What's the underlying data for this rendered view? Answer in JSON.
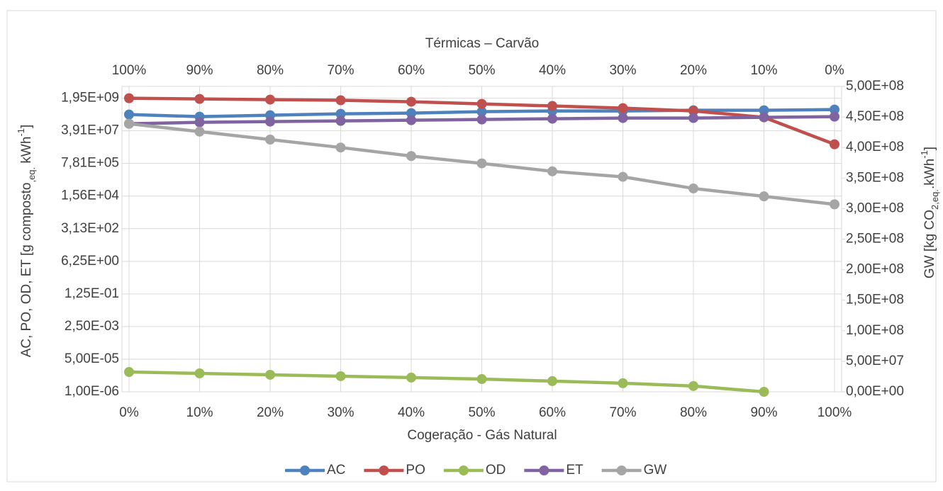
{
  "chart_data": {
    "type": "line",
    "x2_title": "Térmicas – Carvão",
    "x_title": "Cogeração - Gás Natural",
    "y_label_parts": [
      {
        "text": "AC, PO, OD, ET [g composto"
      },
      {
        "text": ",eq.",
        "sub": true
      },
      {
        "text": " kWh"
      },
      {
        "text": "-1",
        "sup": true
      },
      {
        "text": "]"
      }
    ],
    "y2_label_parts": [
      {
        "text": "GW [kg CO"
      },
      {
        "text": "2,eq.",
        "sub": true
      },
      {
        "text": ".kWh"
      },
      {
        "text": "-1",
        "sup": true
      },
      {
        "text": "]"
      }
    ],
    "categories": [
      "0%",
      "10%",
      "20%",
      "30%",
      "40%",
      "50%",
      "60%",
      "70%",
      "80%",
      "90%",
      "100%"
    ],
    "x2_categories": [
      "100%",
      "90%",
      "80%",
      "70%",
      "60%",
      "50%",
      "40%",
      "30%",
      "20%",
      "10%",
      "0%"
    ],
    "yscale": "log",
    "ylim": [
      1e-06,
      8000000000
    ],
    "yticks": [
      {
        "value": 1e-06,
        "label": "1,00E-06"
      },
      {
        "value": 5e-05,
        "label": "5,00E-05"
      },
      {
        "value": 0.0025,
        "label": "2,50E-03"
      },
      {
        "value": 0.125,
        "label": "1,25E-01"
      },
      {
        "value": 6.25,
        "label": "6,25E+00"
      },
      {
        "value": 312.5,
        "label": "3,13E+02"
      },
      {
        "value": 15625,
        "label": "1,56E+04"
      },
      {
        "value": 781250,
        "label": "7,81E+05"
      },
      {
        "value": 39062500,
        "label": "3,91E+07"
      },
      {
        "value": 1953125000,
        "label": "1,95E+09"
      }
    ],
    "y2lim": [
      0,
      500000000
    ],
    "y2ticks": [
      {
        "value": 0,
        "label": "0,00E+00"
      },
      {
        "value": 50000000,
        "label": "5,00E+07"
      },
      {
        "value": 100000000,
        "label": "1,00E+08"
      },
      {
        "value": 150000000,
        "label": "1,50E+08"
      },
      {
        "value": 200000000,
        "label": "2,00E+08"
      },
      {
        "value": 250000000,
        "label": "2,50E+08"
      },
      {
        "value": 300000000,
        "label": "3,00E+08"
      },
      {
        "value": 350000000,
        "label": "3,50E+08"
      },
      {
        "value": 400000000,
        "label": "4,00E+08"
      },
      {
        "value": 450000000,
        "label": "4,50E+08"
      },
      {
        "value": 500000000,
        "label": "5,00E+08"
      }
    ],
    "grid": true,
    "legend": "bottom",
    "series": [
      {
        "name": "AC",
        "color": "#4f81bd",
        "values": [
          276000000,
          214000000,
          254000000,
          301000000,
          327000000,
          388000000,
          423000000,
          423000000,
          460000000,
          460000000,
          500000000
        ]
      },
      {
        "name": "PO",
        "color": "#c0504d",
        "values": [
          1950000000,
          1790000000,
          1650000000,
          1520000000,
          1280000000,
          990000000,
          770000000,
          595000000,
          423000000,
          197000000,
          7760000
        ]
      },
      {
        "name": "OD",
        "color": "#9bbb59",
        "values": [
          1.08e-05,
          9.1e-06,
          7.7e-06,
          6.5e-06,
          5.5e-06,
          4.6e-06,
          3.6e-06,
          2.8e-06,
          2e-06,
          1e-06,
          null
        ]
      },
      {
        "name": "ET",
        "color": "#8064a2",
        "values": [
          91400000,
          108000000,
          118000000,
          128000000,
          140000000,
          152000000,
          166000000,
          181000000,
          181000000,
          197000000,
          214000000
        ]
      },
      {
        "name": "GW",
        "color": "#a5a5a5",
        "axis": "y2",
        "values": [
          439000000,
          426000000,
          413000000,
          400000000,
          386000000,
          374000000,
          361000000,
          352000000,
          333000000,
          320000000,
          307000000
        ]
      }
    ]
  }
}
